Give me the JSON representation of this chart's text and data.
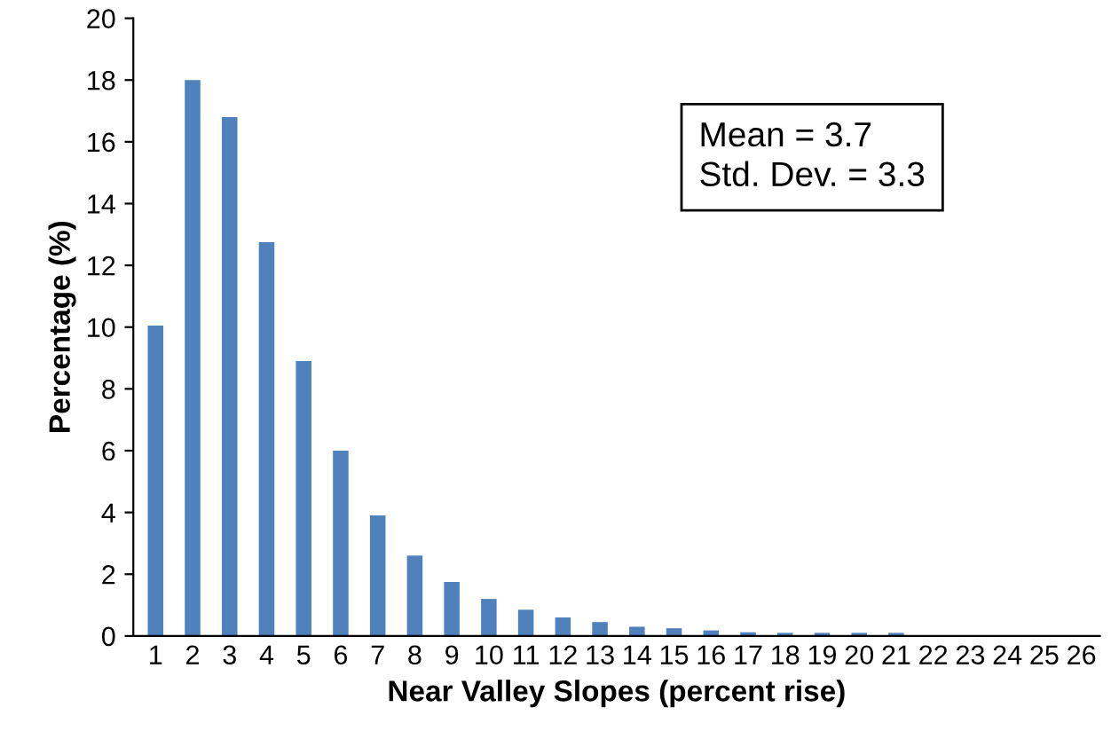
{
  "chart_data": {
    "type": "bar",
    "xlabel": "Near Valley Slopes (percent rise)",
    "ylabel": "Percentage (%)",
    "categories": [
      "1",
      "2",
      "3",
      "4",
      "5",
      "6",
      "7",
      "8",
      "9",
      "10",
      "11",
      "12",
      "13",
      "14",
      "15",
      "16",
      "17",
      "18",
      "19",
      "20",
      "21",
      "22",
      "23",
      "24",
      "25",
      "26"
    ],
    "values": [
      10.05,
      18.0,
      16.8,
      12.75,
      8.9,
      6.0,
      3.9,
      2.6,
      1.75,
      1.2,
      0.85,
      0.6,
      0.45,
      0.3,
      0.25,
      0.18,
      0.12,
      0.1,
      0.1,
      0.1,
      0.1,
      0,
      0,
      0,
      0,
      0
    ],
    "color": "#4f81bd",
    "ylim": [
      0,
      20
    ],
    "yticks": [
      0,
      2,
      4,
      6,
      8,
      10,
      12,
      14,
      16,
      18,
      20
    ],
    "grid": false,
    "legend": false,
    "annotations": [
      "Mean = 3.7\nStd. Dev. = 3.3"
    ]
  }
}
